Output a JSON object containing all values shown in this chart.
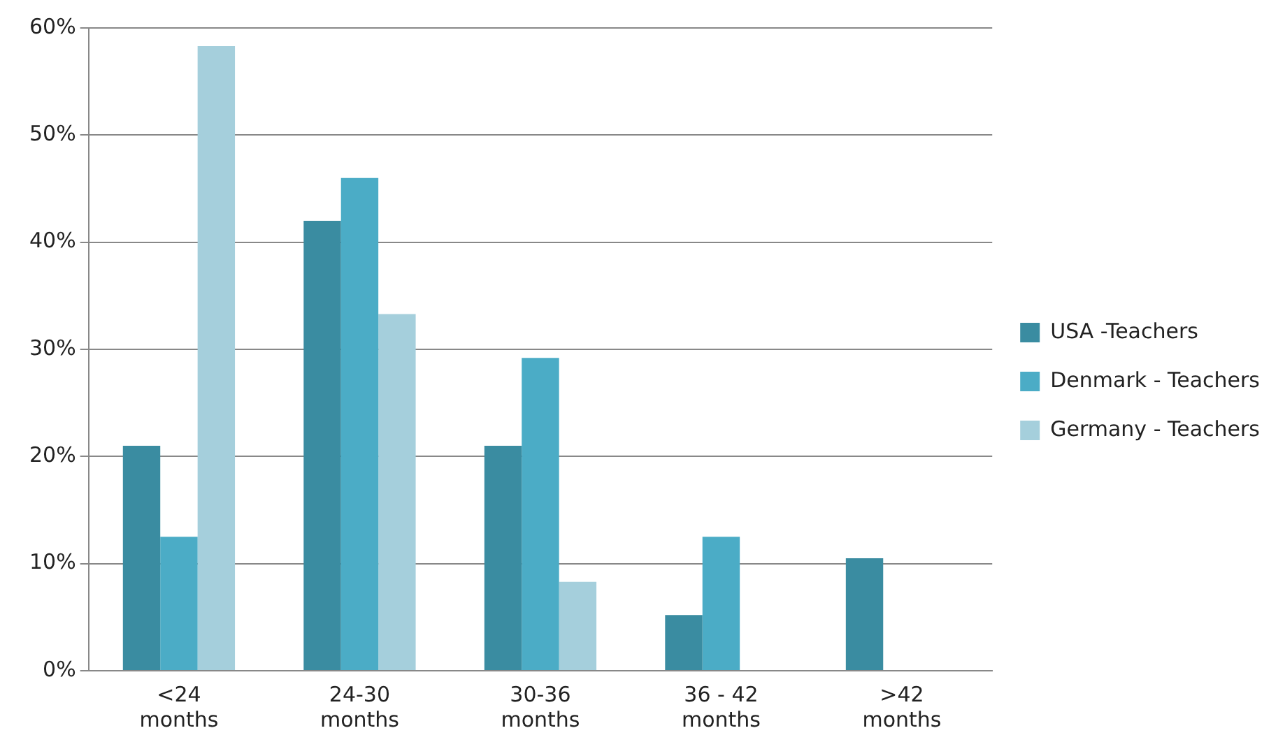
{
  "chart_data": {
    "type": "bar",
    "categories": [
      "<24 months",
      "24-30 months",
      "30-36 months",
      "36 - 42 months",
      ">42 months"
    ],
    "series": [
      {
        "name": "USA -Teachers",
        "color": "#3a8ca1",
        "values": [
          21,
          42,
          21,
          5.2,
          10.5
        ]
      },
      {
        "name": "Denmark - Teachers",
        "color": "#4bacc6",
        "values": [
          12.5,
          46,
          29.2,
          12.5,
          0
        ]
      },
      {
        "name": "Germany - Teachers",
        "color": "#a5cfdc",
        "values": [
          58.3,
          33.3,
          8.3,
          0,
          0
        ]
      }
    ],
    "ylim": [
      0,
      60
    ],
    "yticks": [
      {
        "value": 0,
        "label": "0%"
      },
      {
        "value": 10,
        "label": "10%"
      },
      {
        "value": 20,
        "label": "20%"
      },
      {
        "value": 30,
        "label": "30%"
      },
      {
        "value": 40,
        "label": "40%"
      },
      {
        "value": 50,
        "label": "50%"
      },
      {
        "value": 60,
        "label": "60%"
      }
    ],
    "grid": "y",
    "legend": "right"
  }
}
